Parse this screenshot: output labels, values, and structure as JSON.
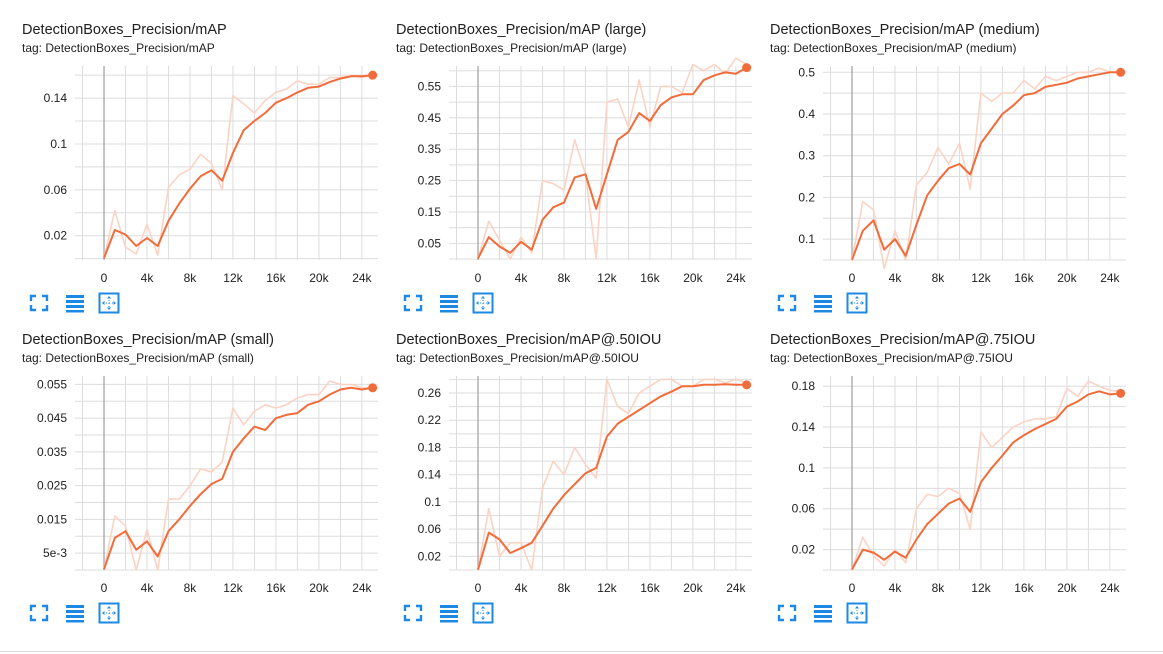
{
  "colors": {
    "accent": "#f26b3a",
    "raw_line": "#fbd3c4",
    "grid": "#dddddd",
    "y_axis": "#9e9e9e",
    "icon_blue": "#1e88e5"
  },
  "icons": [
    "expand-icon",
    "data-table-icon",
    "fit-domain-icon"
  ],
  "chart_data": [
    {
      "type": "line",
      "title": "DetectionBoxes_Precision/mAP",
      "tag": "tag: DetectionBoxes_Precision/mAP",
      "xlabel": "",
      "ylabel": "",
      "xlim": [
        -2700,
        25500
      ],
      "ylim": [
        -0.0012,
        0.168
      ],
      "x_ticks": [
        0,
        4000,
        8000,
        12000,
        16000,
        20000,
        24000
      ],
      "x_tick_labels": [
        "0",
        "4k",
        "8k",
        "12k",
        "16k",
        "20k",
        "24k"
      ],
      "y_ticks": [
        0.02,
        0.06,
        0.1,
        0.14
      ],
      "y_tick_labels": [
        "0.02",
        "0.06",
        "0.1",
        "0.14"
      ],
      "grid": true,
      "series": [
        {
          "role": "raw",
          "x": [
            0,
            1000,
            2000,
            3000,
            4000,
            5000,
            6000,
            7000,
            8000,
            9000,
            10000,
            11000,
            12000,
            13000,
            14000,
            15000,
            16000,
            17000,
            18000,
            19000,
            20000,
            21000,
            22000,
            23000,
            24000,
            25000
          ],
          "y": [
            0.0005,
            0.042,
            0.01,
            0.004,
            0.03,
            0.003,
            0.062,
            0.073,
            0.078,
            0.091,
            0.083,
            0.06,
            0.142,
            0.135,
            0.127,
            0.138,
            0.145,
            0.148,
            0.155,
            0.152,
            0.152,
            0.158,
            0.158,
            0.16,
            0.158,
            0.16
          ]
        },
        {
          "role": "smoothed",
          "x": [
            0,
            1000,
            2000,
            3000,
            4000,
            5000,
            6000,
            7000,
            8000,
            9000,
            10000,
            11000,
            12000,
            13000,
            14000,
            15000,
            16000,
            17000,
            18000,
            19000,
            20000,
            21000,
            22000,
            23000,
            24000,
            25000
          ],
          "y": [
            0.0005,
            0.025,
            0.021,
            0.011,
            0.018,
            0.011,
            0.033,
            0.048,
            0.061,
            0.072,
            0.077,
            0.068,
            0.092,
            0.112,
            0.12,
            0.127,
            0.136,
            0.14,
            0.145,
            0.149,
            0.15,
            0.154,
            0.157,
            0.159,
            0.159,
            0.16
          ]
        }
      ]
    },
    {
      "type": "line",
      "title": "DetectionBoxes_Precision/mAP (large)",
      "tag": "tag: DetectionBoxes_Precision/mAP (large)",
      "xlabel": "",
      "ylabel": "",
      "xlim": [
        -2700,
        25500
      ],
      "ylim": [
        -0.003,
        0.615
      ],
      "x_ticks": [
        0,
        4000,
        8000,
        12000,
        16000,
        20000,
        24000
      ],
      "x_tick_labels": [
        "0",
        "4k",
        "8k",
        "12k",
        "16k",
        "20k",
        "24k"
      ],
      "y_ticks": [
        0.05,
        0.15,
        0.25,
        0.35,
        0.45,
        0.55
      ],
      "y_tick_labels": [
        "0.05",
        "0.15",
        "0.25",
        "0.35",
        "0.45",
        "0.55"
      ],
      "grid": true,
      "series": [
        {
          "role": "raw",
          "x": [
            0,
            1000,
            2000,
            3000,
            4000,
            5000,
            6000,
            7000,
            8000,
            9000,
            10000,
            11000,
            12000,
            13000,
            14000,
            15000,
            16000,
            17000,
            18000,
            19000,
            20000,
            21000,
            22000,
            23000,
            24000,
            25000
          ],
          "y": [
            0.002,
            0.12,
            0.06,
            0.0,
            0.07,
            0.02,
            0.25,
            0.24,
            0.22,
            0.38,
            0.27,
            0.0,
            0.5,
            0.51,
            0.42,
            0.57,
            0.42,
            0.55,
            0.55,
            0.53,
            0.62,
            0.6,
            0.62,
            0.59,
            0.64,
            0.62
          ]
        },
        {
          "role": "smoothed",
          "x": [
            0,
            1000,
            2000,
            3000,
            4000,
            5000,
            6000,
            7000,
            8000,
            9000,
            10000,
            11000,
            12000,
            13000,
            14000,
            15000,
            16000,
            17000,
            18000,
            19000,
            20000,
            21000,
            22000,
            23000,
            24000,
            25000
          ],
          "y": [
            0.002,
            0.07,
            0.04,
            0.02,
            0.055,
            0.03,
            0.125,
            0.165,
            0.18,
            0.26,
            0.27,
            0.16,
            0.27,
            0.38,
            0.405,
            0.465,
            0.44,
            0.49,
            0.515,
            0.525,
            0.525,
            0.57,
            0.585,
            0.595,
            0.59,
            0.61
          ]
        }
      ]
    },
    {
      "type": "line",
      "title": "DetectionBoxes_Precision/mAP (medium)",
      "tag": "tag: DetectionBoxes_Precision/mAP (medium)",
      "xlabel": "",
      "ylabel": "",
      "xlim": [
        -2700,
        25500
      ],
      "ylim": [
        0.05,
        0.515
      ],
      "x_ticks": [
        0,
        4000,
        8000,
        12000,
        16000,
        20000,
        24000
      ],
      "x_tick_labels": [
        "0",
        "4k",
        "8k",
        "12k",
        "16k",
        "20k",
        "24k"
      ],
      "y_ticks": [
        0.1,
        0.2,
        0.3,
        0.4,
        0.5
      ],
      "y_tick_labels": [
        "0.1",
        "0.2",
        "0.3",
        "0.4",
        "0.5"
      ],
      "grid": true,
      "series": [
        {
          "role": "raw",
          "x": [
            0,
            1000,
            2000,
            3000,
            4000,
            5000,
            6000,
            7000,
            8000,
            9000,
            10000,
            11000,
            12000,
            13000,
            14000,
            15000,
            16000,
            17000,
            18000,
            19000,
            20000,
            21000,
            22000,
            23000,
            24000,
            25000
          ],
          "y": [
            0.05,
            0.19,
            0.17,
            0.03,
            0.12,
            0.05,
            0.23,
            0.26,
            0.32,
            0.28,
            0.33,
            0.22,
            0.45,
            0.43,
            0.45,
            0.45,
            0.48,
            0.46,
            0.49,
            0.48,
            0.49,
            0.5,
            0.5,
            0.51,
            0.5,
            0.5
          ]
        },
        {
          "role": "smoothed",
          "x": [
            0,
            1000,
            2000,
            3000,
            4000,
            5000,
            6000,
            7000,
            8000,
            9000,
            10000,
            11000,
            12000,
            13000,
            14000,
            15000,
            16000,
            17000,
            18000,
            19000,
            20000,
            21000,
            22000,
            23000,
            24000,
            25000
          ],
          "y": [
            0.05,
            0.12,
            0.145,
            0.075,
            0.1,
            0.06,
            0.135,
            0.205,
            0.24,
            0.27,
            0.28,
            0.255,
            0.33,
            0.365,
            0.4,
            0.42,
            0.445,
            0.45,
            0.465,
            0.47,
            0.475,
            0.485,
            0.49,
            0.495,
            0.5,
            0.5
          ]
        }
      ]
    },
    {
      "type": "line",
      "title": "DetectionBoxes_Precision/mAP (small)",
      "tag": "tag: DetectionBoxes_Precision/mAP (small)",
      "xlabel": "",
      "ylabel": "",
      "xlim": [
        -2700,
        25500
      ],
      "ylim": [
        0.0,
        0.0575
      ],
      "x_ticks": [
        0,
        4000,
        8000,
        12000,
        16000,
        20000,
        24000
      ],
      "x_tick_labels": [
        "0",
        "4k",
        "8k",
        "12k",
        "16k",
        "20k",
        "24k"
      ],
      "y_ticks": [
        0.005,
        0.015,
        0.025,
        0.035,
        0.045,
        0.055
      ],
      "y_tick_labels": [
        "5e-3",
        "0.015",
        "0.025",
        "0.035",
        "0.045",
        "0.055"
      ],
      "grid": true,
      "series": [
        {
          "role": "raw",
          "x": [
            0,
            1000,
            2000,
            3000,
            4000,
            5000,
            6000,
            7000,
            8000,
            9000,
            10000,
            11000,
            12000,
            13000,
            14000,
            15000,
            16000,
            17000,
            18000,
            19000,
            20000,
            21000,
            22000,
            23000,
            24000,
            25000
          ],
          "y": [
            0.0002,
            0.016,
            0.013,
            0.0,
            0.012,
            0.0,
            0.021,
            0.021,
            0.025,
            0.03,
            0.029,
            0.032,
            0.048,
            0.043,
            0.047,
            0.049,
            0.048,
            0.049,
            0.051,
            0.052,
            0.052,
            0.056,
            0.055,
            0.055,
            0.054,
            0.054
          ]
        },
        {
          "role": "smoothed",
          "x": [
            0,
            1000,
            2000,
            3000,
            4000,
            5000,
            6000,
            7000,
            8000,
            9000,
            10000,
            11000,
            12000,
            13000,
            14000,
            15000,
            16000,
            17000,
            18000,
            19000,
            20000,
            21000,
            22000,
            23000,
            24000,
            25000
          ],
          "y": [
            0.0002,
            0.0095,
            0.0115,
            0.006,
            0.0085,
            0.004,
            0.0115,
            0.015,
            0.019,
            0.0225,
            0.0255,
            0.027,
            0.035,
            0.039,
            0.0425,
            0.0415,
            0.045,
            0.046,
            0.0465,
            0.049,
            0.05,
            0.052,
            0.0535,
            0.054,
            0.0535,
            0.054
          ]
        }
      ]
    },
    {
      "type": "line",
      "title": "DetectionBoxes_Precision/mAP@.50IOU",
      "tag": "tag: DetectionBoxes_Precision/mAP@.50IOU",
      "xlabel": "",
      "ylabel": "",
      "xlim": [
        -2700,
        25500
      ],
      "ylim": [
        0.0,
        0.285
      ],
      "x_ticks": [
        0,
        4000,
        8000,
        12000,
        16000,
        20000,
        24000
      ],
      "x_tick_labels": [
        "0",
        "4k",
        "8k",
        "12k",
        "16k",
        "20k",
        "24k"
      ],
      "y_ticks": [
        0.02,
        0.06,
        0.1,
        0.14,
        0.18,
        0.22,
        0.26
      ],
      "y_tick_labels": [
        "0.02",
        "0.06",
        "0.1",
        "0.14",
        "0.18",
        "0.22",
        "0.26"
      ],
      "grid": true,
      "series": [
        {
          "role": "raw",
          "x": [
            0,
            1000,
            2000,
            3000,
            4000,
            5000,
            6000,
            7000,
            8000,
            9000,
            10000,
            11000,
            12000,
            13000,
            14000,
            15000,
            16000,
            17000,
            18000,
            19000,
            20000,
            21000,
            22000,
            23000,
            24000,
            25000
          ],
          "y": [
            0.0005,
            0.09,
            0.02,
            0.04,
            0.04,
            0.0,
            0.12,
            0.16,
            0.14,
            0.18,
            0.155,
            0.135,
            0.28,
            0.24,
            0.23,
            0.26,
            0.27,
            0.28,
            0.28,
            0.27,
            0.27,
            0.28,
            0.28,
            0.275,
            0.28,
            0.275
          ]
        },
        {
          "role": "smoothed",
          "x": [
            0,
            1000,
            2000,
            3000,
            4000,
            5000,
            6000,
            7000,
            8000,
            9000,
            10000,
            11000,
            12000,
            13000,
            14000,
            15000,
            16000,
            17000,
            18000,
            19000,
            20000,
            21000,
            22000,
            23000,
            24000,
            25000
          ],
          "y": [
            0.0005,
            0.055,
            0.045,
            0.025,
            0.032,
            0.04,
            0.065,
            0.09,
            0.11,
            0.126,
            0.142,
            0.15,
            0.196,
            0.215,
            0.225,
            0.235,
            0.245,
            0.255,
            0.262,
            0.27,
            0.27,
            0.272,
            0.272,
            0.273,
            0.272,
            0.272
          ]
        }
      ]
    },
    {
      "type": "line",
      "title": "DetectionBoxes_Precision/mAP@.75IOU",
      "tag": "tag: DetectionBoxes_Precision/mAP@.75IOU",
      "xlabel": "",
      "ylabel": "",
      "xlim": [
        -2700,
        25500
      ],
      "ylim": [
        0.0,
        0.19
      ],
      "x_ticks": [
        0,
        4000,
        8000,
        12000,
        16000,
        20000,
        24000
      ],
      "x_tick_labels": [
        "0",
        "4k",
        "8k",
        "12k",
        "16k",
        "20k",
        "24k"
      ],
      "y_ticks": [
        0.02,
        0.06,
        0.1,
        0.14,
        0.18
      ],
      "y_tick_labels": [
        "0.02",
        "0.06",
        "0.1",
        "0.14",
        "0.18"
      ],
      "grid": true,
      "series": [
        {
          "role": "raw",
          "x": [
            0,
            1000,
            2000,
            3000,
            4000,
            5000,
            6000,
            7000,
            8000,
            9000,
            10000,
            11000,
            12000,
            13000,
            14000,
            15000,
            16000,
            17000,
            18000,
            19000,
            20000,
            21000,
            22000,
            23000,
            24000,
            25000
          ],
          "y": [
            0.0005,
            0.032,
            0.014,
            0.004,
            0.02,
            0.007,
            0.06,
            0.074,
            0.072,
            0.08,
            0.075,
            0.04,
            0.135,
            0.12,
            0.13,
            0.14,
            0.145,
            0.148,
            0.148,
            0.15,
            0.178,
            0.17,
            0.185,
            0.18,
            0.176,
            0.175
          ]
        },
        {
          "role": "smoothed",
          "x": [
            0,
            1000,
            2000,
            3000,
            4000,
            5000,
            6000,
            7000,
            8000,
            9000,
            10000,
            11000,
            12000,
            13000,
            14000,
            15000,
            16000,
            17000,
            18000,
            19000,
            20000,
            21000,
            22000,
            23000,
            24000,
            25000
          ],
          "y": [
            0.0005,
            0.02,
            0.017,
            0.01,
            0.018,
            0.012,
            0.03,
            0.045,
            0.055,
            0.065,
            0.07,
            0.057,
            0.086,
            0.1,
            0.112,
            0.125,
            0.132,
            0.138,
            0.143,
            0.148,
            0.16,
            0.165,
            0.172,
            0.175,
            0.172,
            0.173
          ]
        }
      ]
    }
  ]
}
